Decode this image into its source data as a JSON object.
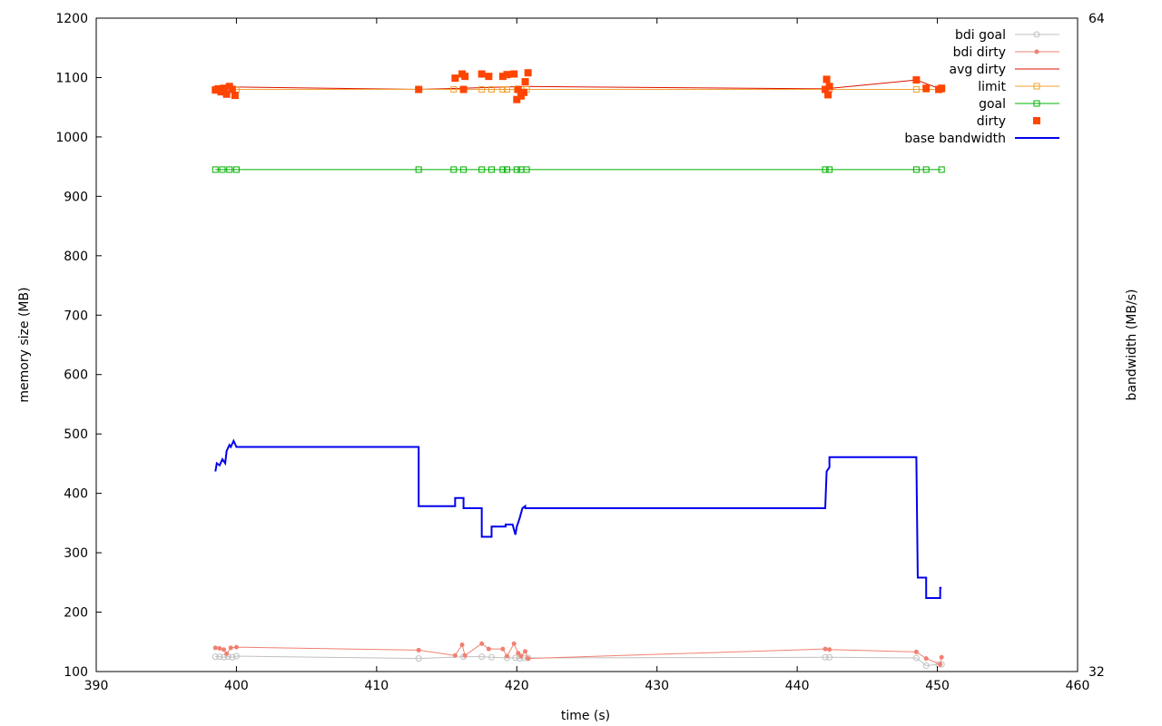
{
  "chart_data": {
    "type": "line",
    "title": "",
    "xlabel": "time (s)",
    "ylabel": "memory size (MB)",
    "y2label": "bandwidth (MB/s)",
    "xlim": [
      390,
      460
    ],
    "ylim": [
      100,
      1200
    ],
    "y2lim": [
      32,
      64
    ],
    "x_ticks": [
      "390",
      "400",
      "410",
      "420",
      "430",
      "440",
      "450",
      "460"
    ],
    "y_ticks": [
      "100",
      "200",
      "300",
      "400",
      "500",
      "600",
      "700",
      "800",
      "900",
      "1000",
      "1100",
      "1200"
    ],
    "y2_ticks": [
      "32",
      "64"
    ],
    "grid": false,
    "legend_position": "top-right",
    "colors": {
      "bdi_goal": "#c0c0c0",
      "bdi_dirty": "#f08070",
      "avg_dirty": "#dd1100",
      "limit": "#f0a030",
      "goal": "#00b000",
      "dirty": "#ff4500",
      "base_bandwidth": "#0000ee"
    },
    "legend": [
      {
        "key": "bdi_goal",
        "label": "bdi goal",
        "style": "line-circle"
      },
      {
        "key": "bdi_dirty",
        "label": "bdi dirty",
        "style": "line-dot"
      },
      {
        "key": "avg_dirty",
        "label": "avg dirty",
        "style": "line"
      },
      {
        "key": "limit",
        "label": "limit",
        "style": "line-square"
      },
      {
        "key": "goal",
        "label": "goal",
        "style": "line-square"
      },
      {
        "key": "dirty",
        "label": "dirty",
        "style": "square"
      },
      {
        "key": "base_bandwidth",
        "label": "base bandwidth",
        "style": "thick-line"
      }
    ],
    "series": [
      {
        "name": "bdi goal",
        "key": "bdi_goal",
        "x": [
          398.5,
          398.8,
          399.1,
          399.4,
          399.7,
          400.0,
          413.0,
          416.2,
          417.5,
          418.2,
          419.3,
          419.9,
          420.2,
          420.5,
          420.8,
          442.0,
          442.3,
          448.5,
          449.2,
          450.1,
          450.3
        ],
        "y": [
          125,
          125,
          124,
          125,
          124,
          126,
          122,
          125,
          125,
          124,
          123,
          123,
          122,
          123,
          123,
          124,
          124,
          123,
          110,
          112,
          112
        ]
      },
      {
        "name": "bdi dirty",
        "key": "bdi_dirty",
        "x": [
          398.5,
          398.8,
          399.1,
          399.3,
          399.6,
          400.0,
          413.0,
          415.6,
          416.1,
          416.3,
          417.5,
          418.0,
          419.0,
          419.3,
          419.8,
          420.1,
          420.3,
          420.6,
          420.8,
          442.0,
          442.3,
          448.5,
          449.2,
          450.2,
          450.3
        ],
        "y": [
          140,
          139,
          137,
          130,
          140,
          141,
          136,
          127,
          145,
          127,
          147,
          138,
          138,
          126,
          147,
          131,
          126,
          134,
          122,
          138,
          137,
          133,
          122,
          112,
          124
        ]
      },
      {
        "name": "avg dirty",
        "key": "avg_dirty",
        "x": [
          398.5,
          400.0,
          413.0,
          420.5,
          442.0,
          448.5,
          450.3
        ],
        "y": [
          1084,
          1084,
          1080,
          1085,
          1081,
          1096,
          1080
        ]
      },
      {
        "name": "limit",
        "key": "limit",
        "x": [
          398.5,
          399.0,
          399.5,
          400.0,
          413.0,
          415.5,
          416.2,
          417.5,
          418.2,
          419.0,
          419.3,
          420.0,
          420.3,
          420.7,
          442.0,
          442.3,
          448.5,
          449.2,
          450.3
        ],
        "y": [
          1080,
          1080,
          1080,
          1080,
          1080,
          1080,
          1080,
          1080,
          1080,
          1080,
          1080,
          1080,
          1080,
          1080,
          1080,
          1080,
          1080,
          1080,
          1080
        ]
      },
      {
        "name": "goal",
        "key": "goal",
        "x": [
          398.5,
          399.0,
          399.5,
          400.0,
          413.0,
          415.5,
          416.2,
          417.5,
          418.2,
          419.0,
          419.3,
          420.0,
          420.3,
          420.7,
          442.0,
          442.3,
          448.5,
          449.2,
          450.3
        ],
        "y": [
          945,
          945,
          945,
          945,
          945,
          945,
          945,
          945,
          945,
          945,
          945,
          945,
          945,
          945,
          945,
          945,
          945,
          945,
          945
        ]
      },
      {
        "name": "dirty",
        "key": "dirty",
        "x": [
          398.5,
          398.7,
          398.9,
          399.1,
          399.3,
          399.5,
          399.7,
          399.9,
          413.0,
          415.6,
          416.1,
          416.2,
          416.3,
          417.5,
          418.0,
          419.0,
          419.3,
          419.8,
          420.0,
          420.1,
          420.3,
          420.5,
          420.6,
          420.8,
          442.0,
          442.1,
          442.2,
          442.3,
          448.5,
          449.2,
          450.1,
          450.3
        ],
        "y": [
          1079,
          1081,
          1076,
          1082,
          1072,
          1085,
          1080,
          1070,
          1080,
          1099,
          1106,
          1080,
          1102,
          1106,
          1102,
          1102,
          1105,
          1106,
          1063,
          1080,
          1069,
          1075,
          1093,
          1108,
          1080,
          1097,
          1071,
          1085,
          1096,
          1082,
          1080,
          1082
        ]
      }
    ],
    "bandwidth_series": {
      "name": "base bandwidth",
      "key": "base_bandwidth",
      "axis": "y2",
      "x": [
        398.5,
        398.6,
        398.8,
        399.0,
        399.2,
        399.3,
        399.5,
        399.6,
        399.8,
        400.0,
        413.0,
        413.0,
        415.6,
        415.6,
        416.2,
        416.2,
        417.5,
        417.5,
        418.2,
        418.2,
        419.2,
        419.2,
        419.7,
        419.9,
        420.0,
        420.2,
        420.4,
        420.6,
        420.6,
        442.0,
        442.1,
        442.3,
        442.3,
        448.5,
        448.6,
        449.2,
        449.2,
        450.2,
        450.2,
        450.3
      ],
      "y": [
        41.8,
        42.2,
        42.1,
        42.4,
        42.2,
        42.8,
        43.1,
        43.0,
        43.3,
        43.0,
        43.0,
        40.1,
        40.1,
        40.5,
        40.5,
        40.0,
        40.0,
        38.6,
        38.6,
        39.1,
        39.1,
        39.2,
        39.2,
        38.7,
        39.1,
        39.5,
        40.0,
        40.1,
        40.0,
        40.0,
        41.8,
        42.0,
        42.5,
        42.5,
        36.6,
        36.6,
        35.6,
        35.6,
        36.1,
        36.1
      ]
    }
  }
}
